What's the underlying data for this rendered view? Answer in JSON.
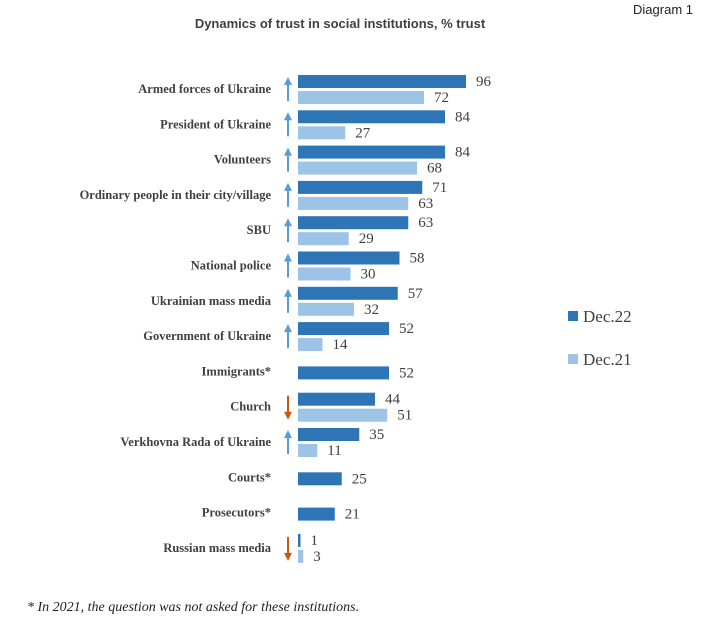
{
  "diagram_label": "Diagram 1",
  "footnote": "* In 2021, the question was not asked for these institutions.",
  "colors": {
    "dec22": "#2e75b6",
    "dec21": "#9dc3e6",
    "up_arrow": "#5b9bd5",
    "down_arrow": "#c55a11"
  },
  "chart_data": {
    "type": "bar",
    "orientation": "horizontal",
    "title": "Dynamics of trust in social institutions, % trust",
    "xlim": [
      0,
      100
    ],
    "grid": false,
    "legend_position": "right",
    "categories": [
      "Armed forces of Ukraine",
      "President of Ukraine",
      "Volunteers",
      "Ordinary people in their city/village",
      "SBU",
      "National police",
      "Ukrainian mass media",
      "Government of Ukraine",
      "Immigrants*",
      "Church",
      "Verkhovna Rada of Ukraine",
      "Courts*",
      "Prosecutors*",
      "Russian mass media"
    ],
    "series": [
      {
        "name": "Dec.22",
        "values": [
          96,
          84,
          84,
          71,
          63,
          58,
          57,
          52,
          52,
          44,
          35,
          25,
          21,
          1
        ]
      },
      {
        "name": "Dec.21",
        "values": [
          72,
          27,
          68,
          63,
          29,
          30,
          32,
          14,
          null,
          51,
          11,
          null,
          null,
          3
        ]
      }
    ],
    "trend_arrows": [
      "up",
      "up",
      "up",
      "up",
      "up",
      "up",
      "up",
      "up",
      null,
      "down",
      "up",
      null,
      null,
      "down"
    ]
  }
}
